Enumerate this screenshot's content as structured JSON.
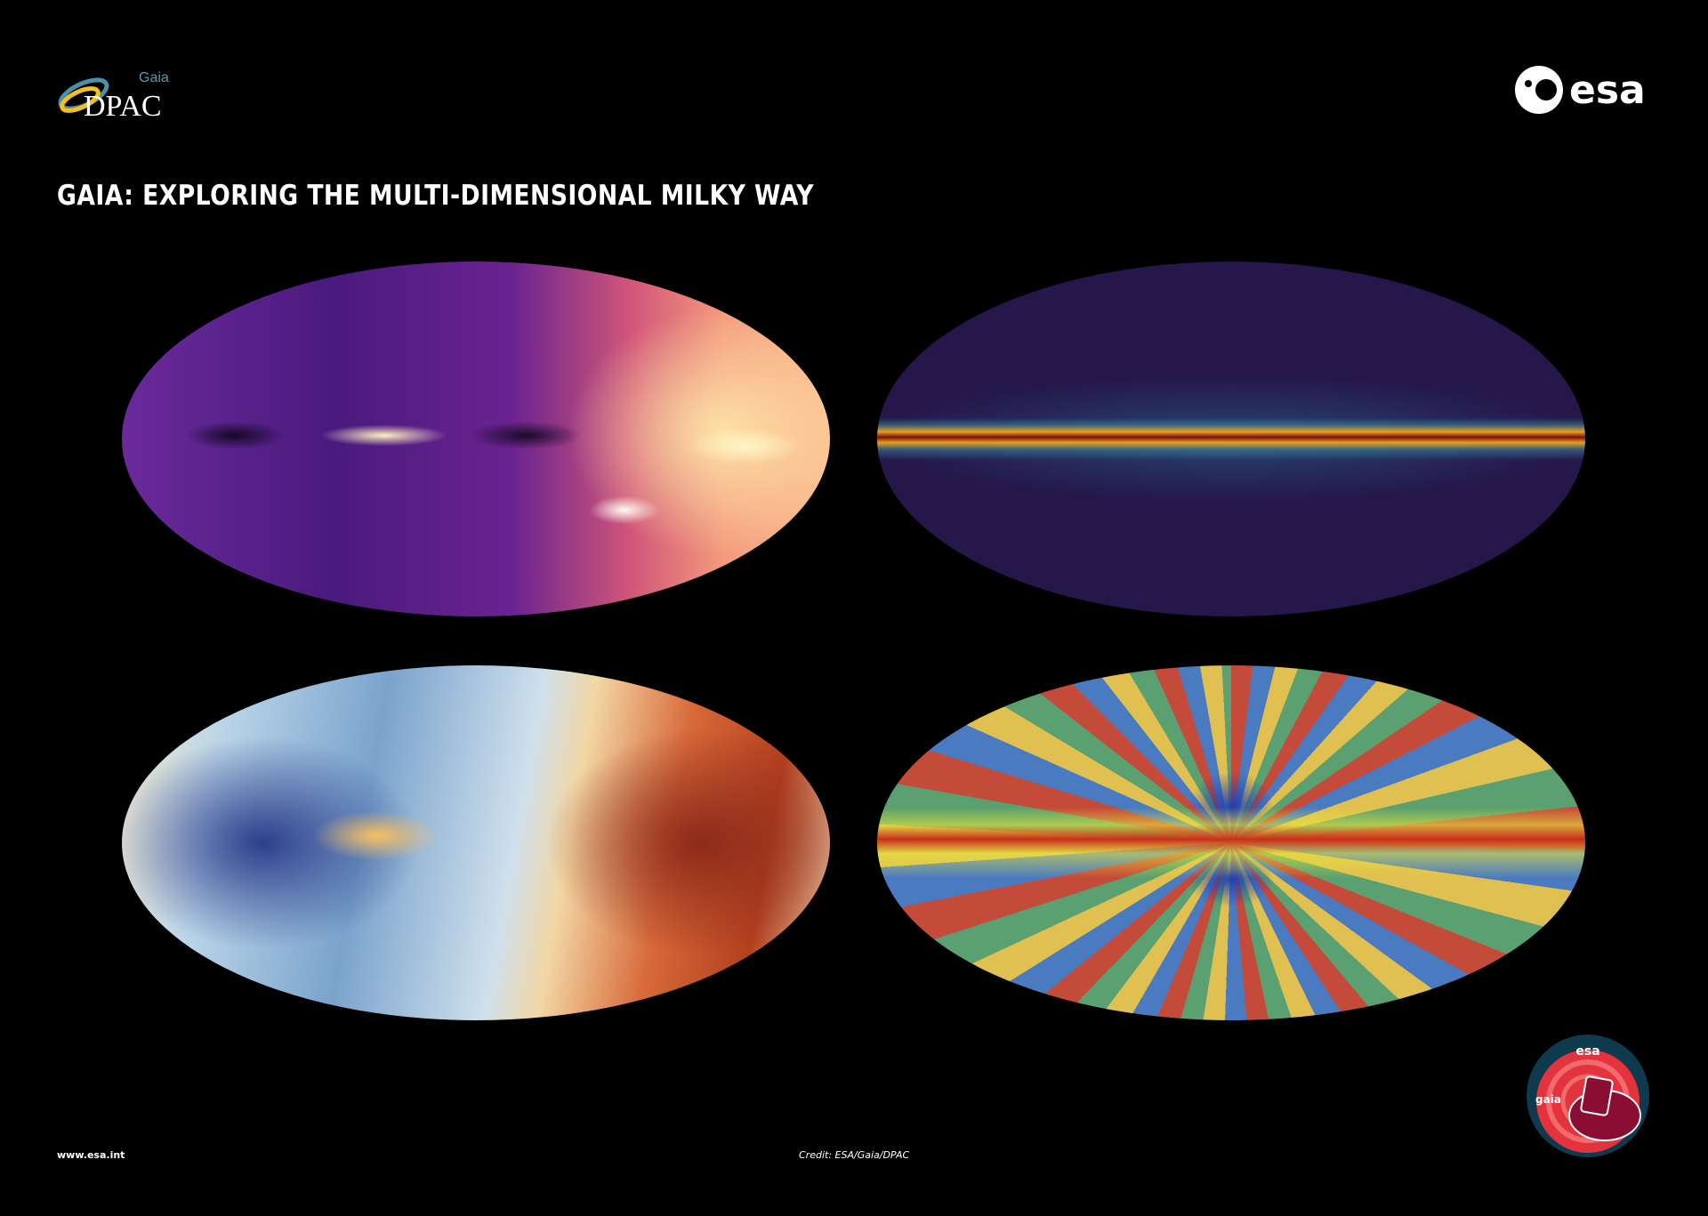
{
  "header": {
    "dpac_logo": {
      "small": "Gaia",
      "big": "DPAC"
    },
    "esa_logo": "esa",
    "title": "GAIA: EXPLORING THE MULTI-DIMENSIONAL MILKY WAY"
  },
  "maps": [
    {
      "id": "top-left",
      "colors": [
        "#4a1a7e",
        "#d1567a",
        "#fbb98c"
      ]
    },
    {
      "id": "top-right",
      "colors": [
        "#25174a",
        "#3c8ca0",
        "#e8a020",
        "#7a1010"
      ]
    },
    {
      "id": "bottom-left",
      "colors": [
        "#2c3f8c",
        "#f6ecd0",
        "#b4401e"
      ]
    },
    {
      "id": "bottom-right",
      "colors": [
        "#2040b0",
        "#5aa070",
        "#e0c050",
        "#c8301a"
      ]
    }
  ],
  "footer": {
    "website": "www.esa.int",
    "credit": "Credit: ESA/Gaia/DPAC",
    "badge": {
      "agency": "esa",
      "mission": "gaia"
    }
  }
}
